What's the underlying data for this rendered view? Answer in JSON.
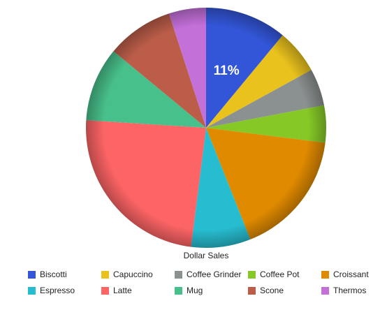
{
  "chart_data": {
    "type": "pie",
    "title": "Dollar Sales",
    "categories": [
      "Biscotti",
      "Capuccino",
      "Coffee Grinder",
      "Coffee Pot",
      "Croissant",
      "Espresso",
      "Latte",
      "Mug",
      "Scone",
      "Thermos"
    ],
    "values": [
      11,
      6,
      5,
      5,
      17,
      8,
      24,
      10,
      9,
      5
    ],
    "value_labels": [
      "11%",
      null,
      null,
      null,
      null,
      null,
      null,
      null,
      null,
      null
    ],
    "colors": [
      "#3356d8",
      "#e9c21d",
      "#8b9190",
      "#86c927",
      "#e08a00",
      "#27bdd0",
      "#fd6465",
      "#48c08b",
      "#bb5d49",
      "#c470d9"
    ]
  }
}
